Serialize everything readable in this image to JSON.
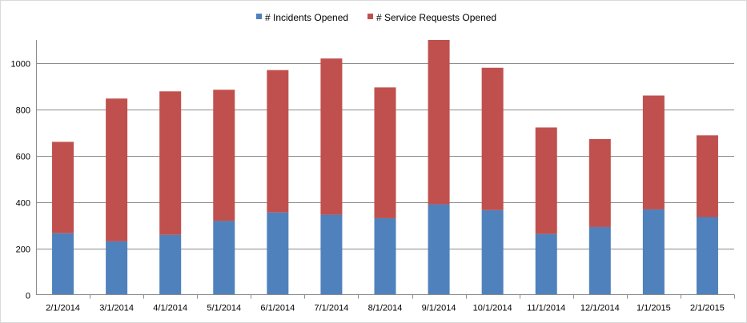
{
  "chart_data": {
    "type": "bar",
    "stacked": true,
    "categories": [
      "2/1/2014",
      "3/1/2014",
      "4/1/2014",
      "5/1/2014",
      "6/1/2014",
      "7/1/2014",
      "8/1/2014",
      "9/1/2014",
      "10/1/2014",
      "11/1/2014",
      "12/1/2014",
      "1/1/2015",
      "2/1/2015"
    ],
    "series": [
      {
        "name": "# Incidents Opened",
        "color": "#4f81bd",
        "values": [
          265,
          230,
          258,
          318,
          355,
          345,
          330,
          390,
          365,
          262,
          292,
          368,
          335
        ]
      },
      {
        "name": "# Service Requests Opened",
        "color": "#c0504d",
        "values": [
          395,
          617,
          620,
          567,
          615,
          675,
          565,
          710,
          615,
          460,
          380,
          492,
          353
        ]
      }
    ],
    "y_ticks": [
      "0",
      "200",
      "400",
      "600",
      "800",
      "1000"
    ],
    "ylim": [
      0,
      1100
    ],
    "grid": true,
    "legend_position": "top"
  }
}
